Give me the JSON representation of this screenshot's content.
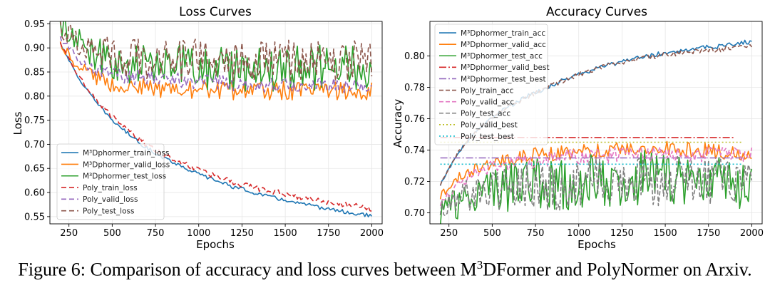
{
  "caption": {
    "prefix": "Figure 6: Comparison of accuracy and loss curves between M",
    "sup": "3",
    "suffix": "DFormer and PolyNormer on Arxiv."
  },
  "chart_data": [
    {
      "type": "line",
      "title": "Loss Curves",
      "xlabel": "Epochs",
      "ylabel": "Loss",
      "xlim": [
        140,
        2060
      ],
      "ylim": [
        0.535,
        0.955
      ],
      "xticks": [
        250,
        500,
        750,
        1000,
        1250,
        1500,
        1750,
        2000
      ],
      "yticks": [
        0.55,
        0.6,
        0.65,
        0.7,
        0.75,
        0.8,
        0.85,
        0.9,
        0.95
      ],
      "ytick_labels": [
        "0.55",
        "0.60",
        "0.65",
        "0.70",
        "0.75",
        "0.80",
        "0.85",
        "0.90",
        "0.95"
      ],
      "grid": true,
      "legend_position": "lower-left",
      "series": [
        {
          "name": "M³Dphormer_train_loss",
          "color": "#1f77b4",
          "dash": "solid",
          "noise": 0.002,
          "x": [
            200,
            300,
            400,
            500,
            600,
            700,
            800,
            900,
            1000,
            1100,
            1200,
            1300,
            1400,
            1500,
            1600,
            1700,
            1800,
            1900,
            2000
          ],
          "y": [
            0.91,
            0.84,
            0.79,
            0.75,
            0.72,
            0.692,
            0.672,
            0.655,
            0.638,
            0.625,
            0.612,
            0.602,
            0.592,
            0.584,
            0.576,
            0.569,
            0.563,
            0.556,
            0.552
          ]
        },
        {
          "name": "M³Dphormer_valid_loss",
          "color": "#ff7f0e",
          "dash": "solid",
          "noise": 0.01,
          "x": [
            200,
            300,
            400,
            500,
            600,
            800,
            1000,
            1200,
            1500,
            1800,
            2000
          ],
          "y": [
            0.91,
            0.865,
            0.84,
            0.825,
            0.82,
            0.815,
            0.812,
            0.812,
            0.812,
            0.812,
            0.812
          ]
        },
        {
          "name": "M³Dphormer_test_loss",
          "color": "#2ca02c",
          "dash": "solid",
          "noise": 0.024,
          "x": [
            200,
            300,
            400,
            500,
            700,
            1000,
            1300,
            1600,
            2000
          ],
          "y": [
            0.945,
            0.915,
            0.89,
            0.875,
            0.865,
            0.86,
            0.858,
            0.858,
            0.858
          ]
        },
        {
          "name": "Poly_train_loss",
          "color": "#d62728",
          "dash": "7,4",
          "noise": 0.003,
          "x": [
            200,
            300,
            400,
            500,
            600,
            700,
            800,
            900,
            1000,
            1100,
            1200,
            1300,
            1400,
            1500,
            1600,
            1700,
            1800,
            1900,
            2000
          ],
          "y": [
            0.91,
            0.845,
            0.795,
            0.757,
            0.727,
            0.699,
            0.679,
            0.662,
            0.646,
            0.634,
            0.622,
            0.612,
            0.604,
            0.597,
            0.589,
            0.583,
            0.577,
            0.572,
            0.567
          ]
        },
        {
          "name": "Poly_valid_loss",
          "color": "#9467bd",
          "dash": "7,4",
          "noise": 0.008,
          "x": [
            200,
            300,
            400,
            500,
            700,
            1000,
            1300,
            1600,
            2000
          ],
          "y": [
            0.92,
            0.88,
            0.855,
            0.845,
            0.835,
            0.83,
            0.825,
            0.822,
            0.82
          ]
        },
        {
          "name": "Poly_test_loss",
          "color": "#8c564b",
          "dash": "7,4",
          "noise": 0.022,
          "x": [
            200,
            300,
            400,
            500,
            700,
            1000,
            1300,
            1600,
            2000
          ],
          "y": [
            0.945,
            0.91,
            0.895,
            0.885,
            0.88,
            0.875,
            0.873,
            0.873,
            0.873
          ]
        }
      ]
    },
    {
      "type": "line",
      "title": "Accuracy Curves",
      "xlabel": "Epochs",
      "ylabel": "Accuracy",
      "xlim": [
        140,
        2060
      ],
      "ylim": [
        0.693,
        0.822
      ],
      "xticks": [
        250,
        500,
        750,
        1000,
        1250,
        1500,
        1750,
        2000
      ],
      "yticks": [
        0.7,
        0.72,
        0.74,
        0.76,
        0.78,
        0.8
      ],
      "ytick_labels": [
        "0.70",
        "0.72",
        "0.74",
        "0.76",
        "0.78",
        "0.80"
      ],
      "grid": true,
      "legend_position": "upper-left",
      "series": [
        {
          "name": "M³Dphormer_train_acc",
          "color": "#1f77b4",
          "dash": "solid",
          "noise": 0.0007,
          "x": [
            200,
            300,
            400,
            500,
            600,
            700,
            800,
            900,
            1000,
            1100,
            1200,
            1300,
            1400,
            1500,
            1600,
            1700,
            1800,
            1900,
            2000
          ],
          "y": [
            0.718,
            0.738,
            0.751,
            0.761,
            0.768,
            0.774,
            0.779,
            0.784,
            0.788,
            0.792,
            0.795,
            0.798,
            0.8,
            0.802,
            0.804,
            0.805,
            0.806,
            0.808,
            0.809
          ]
        },
        {
          "name": "M³Dphormer_valid_acc",
          "color": "#ff7f0e",
          "dash": "solid",
          "noise": 0.0025,
          "x": [
            200,
            300,
            400,
            500,
            700,
            1000,
            1300,
            1600,
            2000
          ],
          "y": [
            0.711,
            0.722,
            0.728,
            0.732,
            0.737,
            0.739,
            0.74,
            0.741,
            0.738
          ]
        },
        {
          "name": "M³Dphormer_test_acc",
          "color": "#2ca02c",
          "dash": "solid",
          "noise": 0.009,
          "x": [
            200,
            300,
            400,
            500,
            700,
            1000,
            1300,
            1600,
            2000
          ],
          "y": [
            0.699,
            0.707,
            0.712,
            0.715,
            0.718,
            0.72,
            0.722,
            0.722,
            0.72
          ]
        },
        {
          "name": "M³Dphormer_valid_best",
          "color": "#d62728",
          "dash": "10,3,2,3",
          "noise": 0,
          "x": [
            200,
            1900
          ],
          "y": [
            0.748,
            0.748
          ]
        },
        {
          "name": "M³Dphormer_test_best",
          "color": "#9467bd",
          "dash": "10,3,2,3",
          "noise": 0,
          "x": [
            200,
            1950
          ],
          "y": [
            0.735,
            0.735
          ]
        },
        {
          "name": "Poly_train_acc",
          "color": "#8c564b",
          "dash": "6,3",
          "noise": 0.0008,
          "x": [
            200,
            300,
            400,
            500,
            600,
            700,
            800,
            900,
            1000,
            1100,
            1200,
            1300,
            1400,
            1500,
            1600,
            1700,
            1800,
            1900,
            2000
          ],
          "y": [
            0.718,
            0.738,
            0.751,
            0.761,
            0.768,
            0.774,
            0.779,
            0.784,
            0.788,
            0.792,
            0.795,
            0.797,
            0.799,
            0.801,
            0.802,
            0.803,
            0.804,
            0.805,
            0.806
          ]
        },
        {
          "name": "Poly_valid_acc",
          "color": "#e377c2",
          "dash": "6,3",
          "noise": 0.0025,
          "x": [
            200,
            300,
            400,
            500,
            700,
            1000,
            1300,
            1600,
            2000
          ],
          "y": [
            0.706,
            0.718,
            0.725,
            0.729,
            0.733,
            0.736,
            0.737,
            0.737,
            0.737
          ]
        },
        {
          "name": "Poly_test_acc",
          "color": "#7f7f7f",
          "dash": "6,3",
          "noise": 0.008,
          "x": [
            200,
            300,
            400,
            500,
            700,
            1000,
            1300,
            1600,
            2000
          ],
          "y": [
            0.703,
            0.708,
            0.712,
            0.714,
            0.716,
            0.718,
            0.72,
            0.72,
            0.72
          ]
        },
        {
          "name": "Poly_valid_best",
          "color": "#bcbd22",
          "dash": "2,3",
          "noise": 0,
          "x": [
            200,
            1950
          ],
          "y": [
            0.745,
            0.745
          ]
        },
        {
          "name": "Poly_test_best",
          "color": "#17becf",
          "dash": "2,3",
          "noise": 0,
          "x": [
            200,
            1950
          ],
          "y": [
            0.731,
            0.731
          ]
        }
      ]
    }
  ]
}
